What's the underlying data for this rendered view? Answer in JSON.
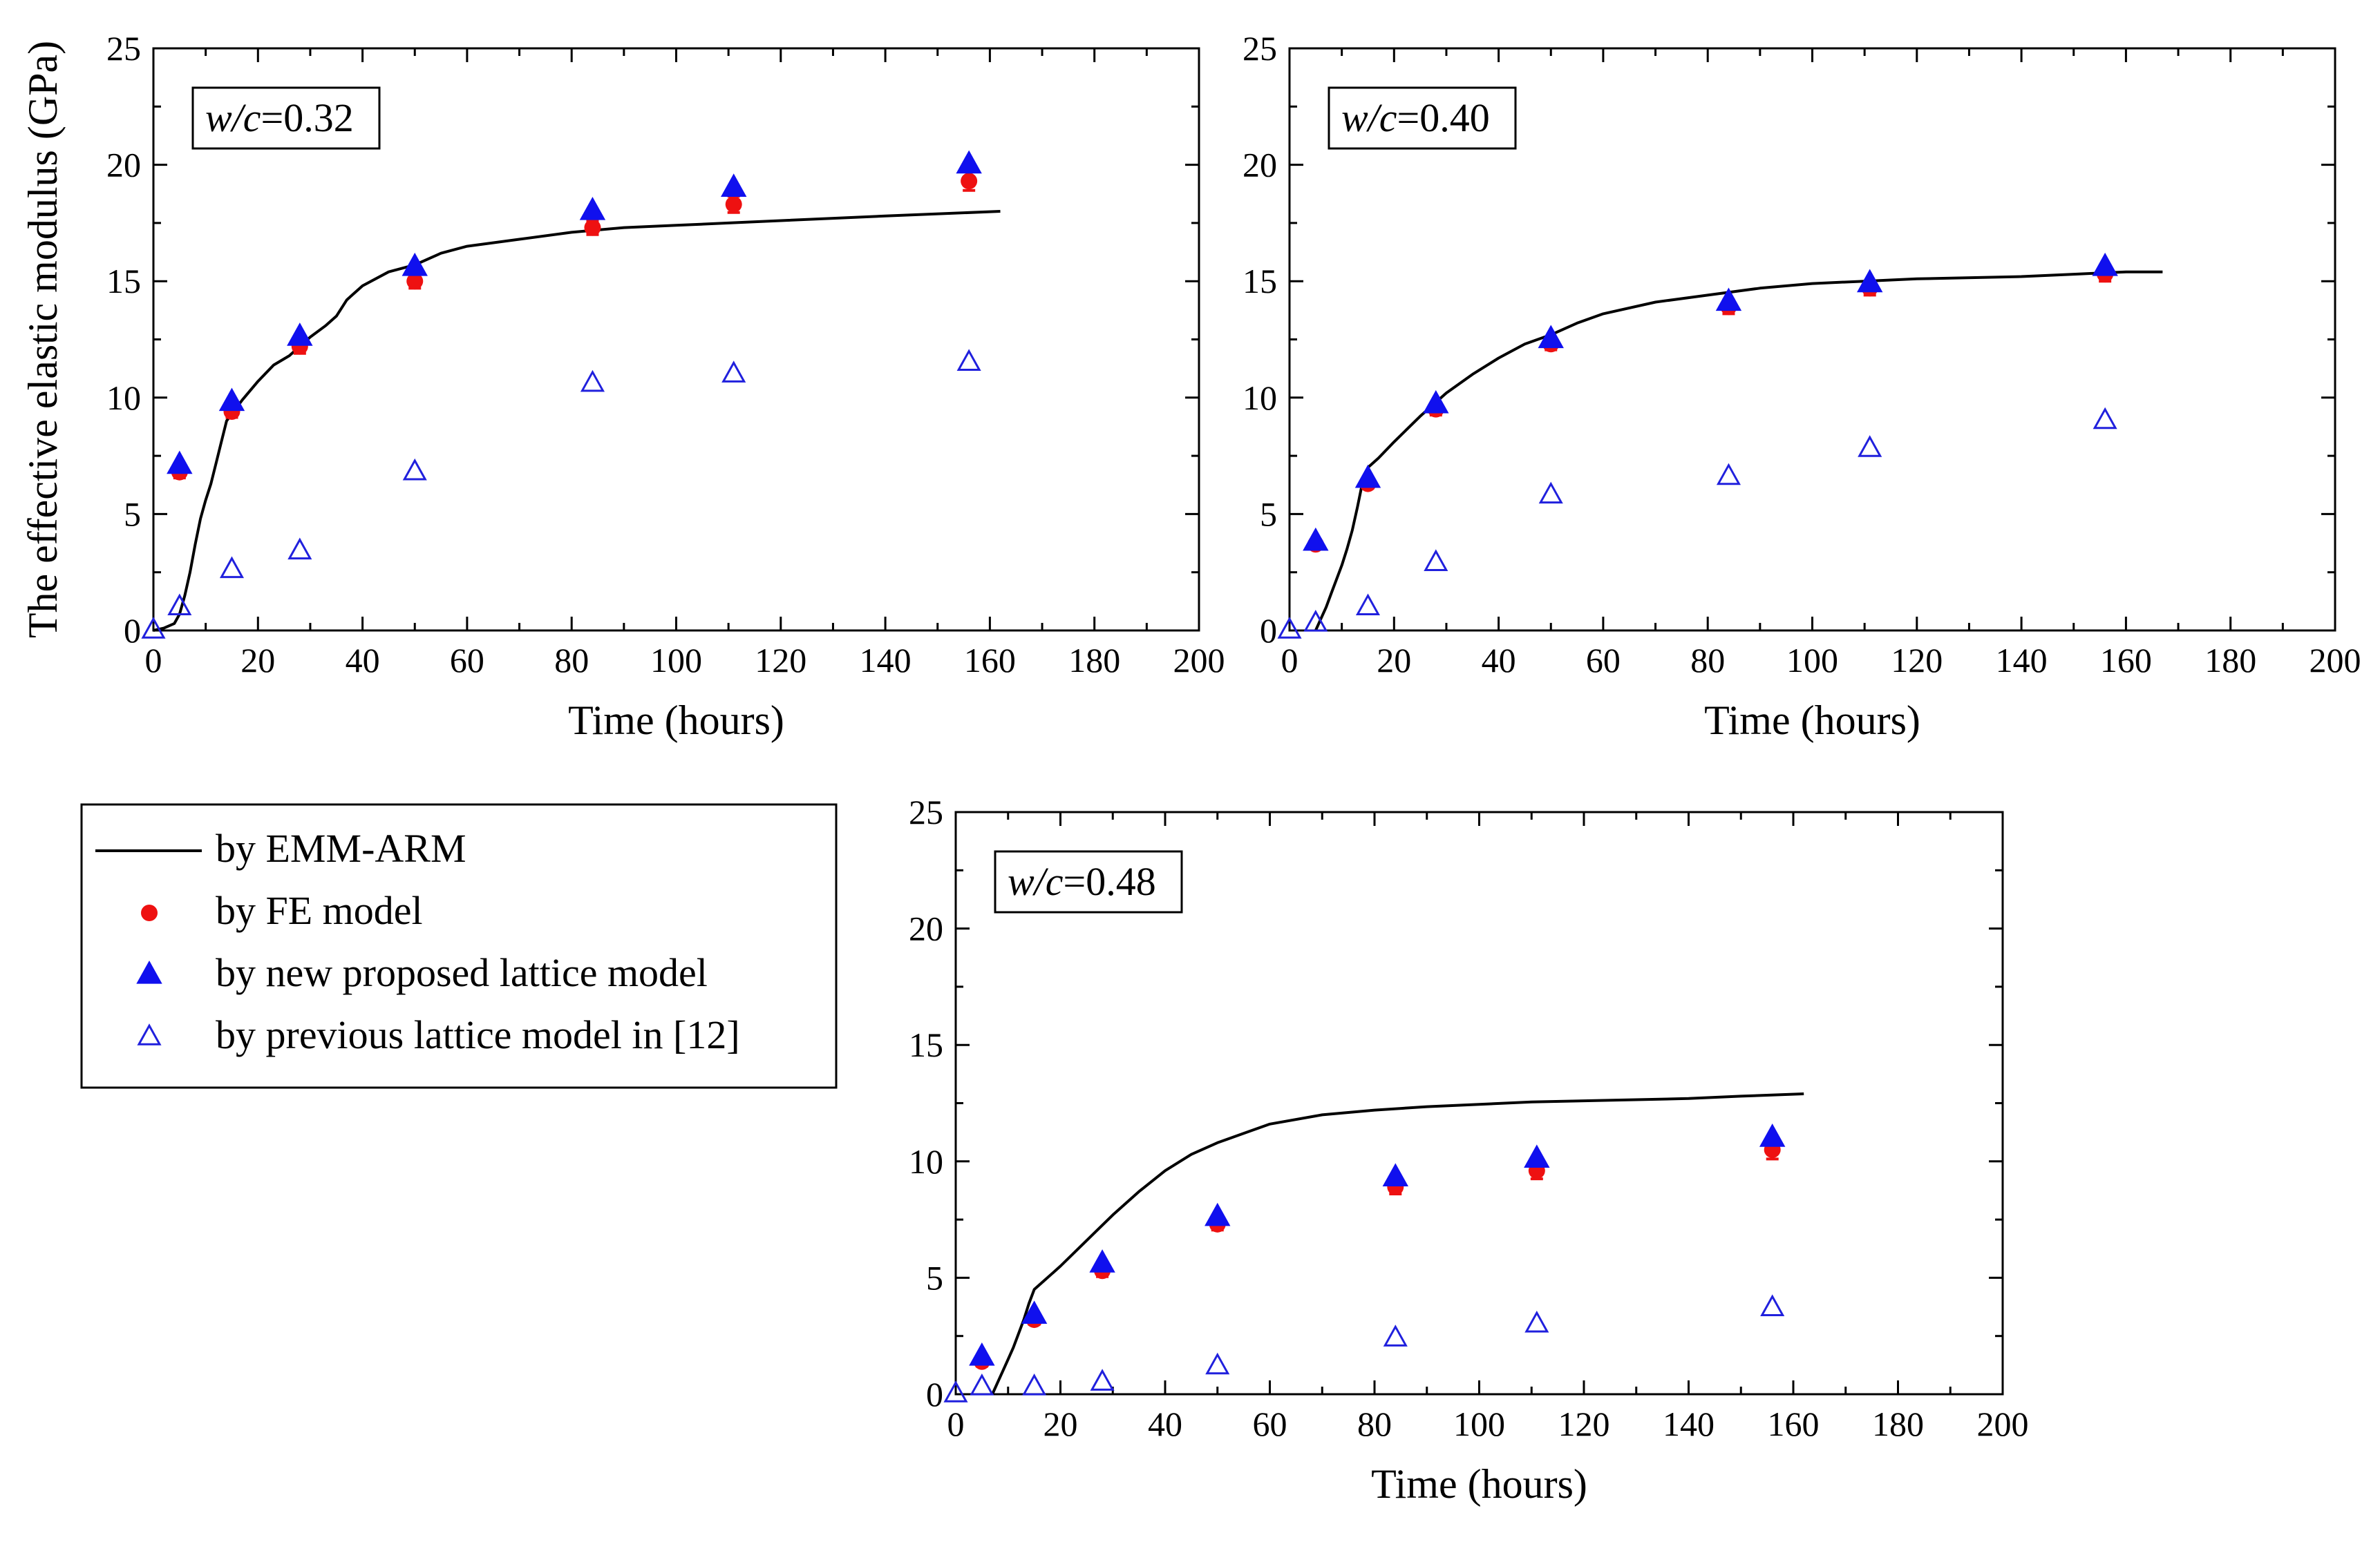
{
  "chart_data": [
    {
      "type": "scatter",
      "annotation": {
        "italic": "w/c",
        "rest": "=0.32"
      },
      "xlabel": "Time (hours)",
      "ylabel": "The effective elastic modulus (GPa)",
      "xlim": [
        0,
        200
      ],
      "ylim": [
        0,
        25
      ],
      "xticks": [
        "0",
        "20",
        "40",
        "60",
        "80",
        "100",
        "120",
        "140",
        "160",
        "180",
        "200"
      ],
      "yticks": [
        "0",
        "5",
        "10",
        "15",
        "20",
        "25"
      ],
      "series": [
        {
          "name": "by EMM-ARM",
          "kind": "line",
          "x": [
            0,
            2,
            4,
            5,
            6,
            7,
            8,
            9,
            10,
            11,
            12,
            13,
            14,
            15,
            17,
            20,
            23,
            26,
            30,
            33,
            35,
            37,
            40,
            45,
            50,
            55,
            60,
            70,
            80,
            90,
            100,
            110,
            120,
            140,
            162
          ],
          "y": [
            0,
            0.1,
            0.3,
            0.7,
            1.5,
            2.5,
            3.7,
            4.8,
            5.6,
            6.3,
            7.2,
            8.1,
            9.0,
            9.3,
            9.9,
            10.7,
            11.4,
            11.8,
            12.6,
            13.1,
            13.5,
            14.2,
            14.8,
            15.4,
            15.7,
            16.2,
            16.5,
            16.8,
            17.1,
            17.3,
            17.4,
            17.5,
            17.6,
            17.8,
            18.0
          ]
        },
        {
          "name": "by FE model",
          "kind": "dot",
          "x": [
            5,
            15,
            28,
            50,
            84,
            111,
            156
          ],
          "y": [
            6.8,
            9.4,
            12.2,
            15.0,
            17.3,
            18.3,
            19.3
          ],
          "err": [
            0.25,
            0.25,
            0.3,
            0.3,
            0.3,
            0.35,
            0.4
          ]
        },
        {
          "name": "by new proposed lattice model",
          "kind": "tri-filled",
          "x": [
            5,
            15,
            28,
            50,
            84,
            111,
            156
          ],
          "y": [
            7.1,
            9.8,
            12.6,
            15.6,
            18.0,
            19.0,
            20.0
          ]
        },
        {
          "name": "by previous lattice model in [12]",
          "kind": "tri-open",
          "x": [
            0,
            5,
            15,
            28,
            50,
            84,
            111,
            156
          ],
          "y": [
            0,
            1.0,
            2.6,
            3.4,
            6.8,
            10.6,
            11.0,
            11.5
          ]
        }
      ]
    },
    {
      "type": "scatter",
      "annotation": {
        "italic": "w/c",
        "rest": "=0.40"
      },
      "xlabel": "Time (hours)",
      "ylabel": "",
      "xlim": [
        0,
        200
      ],
      "ylim": [
        0,
        25
      ],
      "xticks": [
        "0",
        "20",
        "40",
        "60",
        "80",
        "100",
        "120",
        "140",
        "160",
        "180",
        "200"
      ],
      "yticks": [
        "0",
        "5",
        "10",
        "15",
        "20",
        "25"
      ],
      "series": [
        {
          "name": "by EMM-ARM",
          "kind": "line",
          "x": [
            5,
            6,
            7,
            8,
            9,
            10,
            11,
            12,
            13,
            14,
            15,
            17,
            20,
            25,
            30,
            35,
            40,
            45,
            50,
            55,
            60,
            70,
            80,
            90,
            100,
            110,
            120,
            140,
            150,
            160,
            167
          ],
          "y": [
            0,
            0.5,
            1.0,
            1.6,
            2.2,
            2.8,
            3.5,
            4.3,
            5.3,
            6.4,
            7.0,
            7.4,
            8.1,
            9.2,
            10.2,
            11.0,
            11.7,
            12.3,
            12.7,
            13.2,
            13.6,
            14.1,
            14.4,
            14.7,
            14.9,
            15.0,
            15.1,
            15.2,
            15.3,
            15.4,
            15.4
          ]
        },
        {
          "name": "by FE model",
          "kind": "dot",
          "x": [
            5,
            15,
            28,
            50,
            84,
            111,
            156
          ],
          "y": [
            3.7,
            6.3,
            9.5,
            12.3,
            13.9,
            14.7,
            15.3
          ],
          "err": [
            0.2,
            0.2,
            0.25,
            0.25,
            0.3,
            0.3,
            0.3
          ]
        },
        {
          "name": "by new proposed lattice model",
          "kind": "tri-filled",
          "x": [
            5,
            15,
            28,
            50,
            84,
            111,
            156
          ],
          "y": [
            3.8,
            6.5,
            9.7,
            12.5,
            14.1,
            14.9,
            15.6
          ]
        },
        {
          "name": "by previous lattice model in [12]",
          "kind": "tri-open",
          "x": [
            0,
            5,
            15,
            28,
            50,
            84,
            111,
            156
          ],
          "y": [
            0,
            0.3,
            1.0,
            2.9,
            5.8,
            6.6,
            7.8,
            9.0
          ]
        }
      ]
    },
    {
      "type": "scatter",
      "annotation": {
        "italic": "w/c",
        "rest": "=0.48"
      },
      "xlabel": "Time (hours)",
      "ylabel": "",
      "xlim": [
        0,
        200
      ],
      "ylim": [
        0,
        25
      ],
      "xticks": [
        "0",
        "20",
        "40",
        "60",
        "80",
        "100",
        "120",
        "140",
        "160",
        "180",
        "200"
      ],
      "yticks": [
        "0",
        "5",
        "10",
        "15",
        "20",
        "25"
      ],
      "series": [
        {
          "name": "by EMM-ARM",
          "kind": "line",
          "x": [
            7,
            8,
            9,
            10,
            11,
            12,
            13,
            14,
            15,
            17,
            20,
            25,
            30,
            35,
            40,
            45,
            50,
            55,
            60,
            70,
            80,
            90,
            100,
            110,
            120,
            140,
            150,
            162
          ],
          "y": [
            0,
            0.5,
            1.0,
            1.5,
            2.0,
            2.6,
            3.2,
            3.9,
            4.5,
            4.9,
            5.5,
            6.6,
            7.7,
            8.7,
            9.6,
            10.3,
            10.8,
            11.2,
            11.6,
            12.0,
            12.2,
            12.35,
            12.45,
            12.55,
            12.6,
            12.7,
            12.8,
            12.9
          ]
        },
        {
          "name": "by FE model",
          "kind": "dot",
          "x": [
            5,
            15,
            28,
            50,
            84,
            111,
            156
          ],
          "y": [
            1.4,
            3.2,
            5.3,
            7.3,
            8.9,
            9.6,
            10.5
          ],
          "err": [
            0.2,
            0.2,
            0.25,
            0.25,
            0.3,
            0.35,
            0.4
          ]
        },
        {
          "name": "by new proposed lattice model",
          "kind": "tri-filled",
          "x": [
            5,
            15,
            28,
            50,
            84,
            111,
            156
          ],
          "y": [
            1.6,
            3.4,
            5.6,
            7.6,
            9.3,
            10.1,
            11.0
          ]
        },
        {
          "name": "by previous lattice model in [12]",
          "kind": "tri-open",
          "x": [
            0,
            5,
            15,
            28,
            50,
            84,
            111,
            156
          ],
          "y": [
            0,
            0.3,
            0.3,
            0.5,
            1.2,
            2.4,
            3.0,
            3.7
          ]
        }
      ]
    }
  ],
  "legend": {
    "placement": "left, below top-left chart",
    "items": [
      {
        "label": "by EMM-ARM",
        "kind": "line"
      },
      {
        "label": "by FE model",
        "kind": "dot"
      },
      {
        "label": "by new proposed lattice model",
        "kind": "tri-filled"
      },
      {
        "label": "by previous lattice model in [12]",
        "kind": "tri-open"
      }
    ]
  },
  "colors": {
    "line": "#000000",
    "fe": "#ee1111",
    "lattice_new": "#1010ee",
    "lattice_prev": "#2020dd"
  }
}
